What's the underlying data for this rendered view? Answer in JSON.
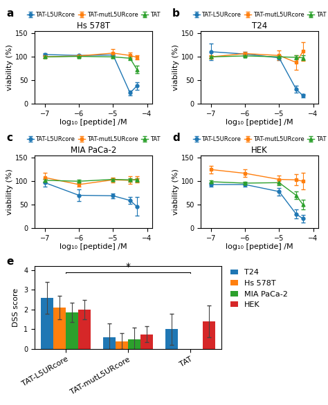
{
  "chart_data": [
    {
      "type": "line",
      "title": "Hs 578T",
      "annotations": [
        {
          "text": "a"
        }
      ],
      "x": [
        -7,
        -6,
        -5,
        -4.5,
        -4.3
      ],
      "xlim": [
        -7.3,
        -3.85
      ],
      "xticks": [
        {
          "value": -7,
          "label": "−7"
        },
        {
          "value": -6,
          "label": "−6"
        },
        {
          "value": -5,
          "label": "−5"
        },
        {
          "value": -4,
          "label": "−4"
        }
      ],
      "ylim": [
        0,
        155
      ],
      "yticks": [
        0,
        50,
        100,
        150
      ],
      "x_label": "log₁₀ [peptide] /M",
      "y_label": "viability (%)",
      "legend": "upper center",
      "series": [
        {
          "name": "TAT-L5URcore",
          "marker": "circle",
          "values": [
            105,
            103,
            104,
            23,
            38
          ],
          "errors": [
            3,
            2,
            3,
            5,
            8
          ]
        },
        {
          "name": "TAT-mutL5URcore",
          "marker": "square",
          "values": [
            100,
            102,
            108,
            103,
            99
          ],
          "errors": [
            3,
            2,
            8,
            6,
            5
          ]
        },
        {
          "name": "TAT",
          "marker": "triangle",
          "values": [
            100,
            101,
            100,
            97,
            73
          ],
          "errors": [
            2,
            2,
            3,
            4,
            8
          ]
        }
      ]
    },
    {
      "type": "line",
      "title": "T24",
      "annotations": [
        {
          "text": "b"
        }
      ],
      "x": [
        -7,
        -6,
        -5,
        -4.5,
        -4.3
      ],
      "xlim": [
        -7.3,
        -3.85
      ],
      "xticks": [
        {
          "value": -7,
          "label": "−7"
        },
        {
          "value": -6,
          "label": "−6"
        },
        {
          "value": -5,
          "label": "−5"
        },
        {
          "value": -4,
          "label": "−4"
        }
      ],
      "ylim": [
        0,
        155
      ],
      "yticks": [
        0,
        50,
        100,
        150
      ],
      "x_label": "log₁₀ [peptide] /M",
      "y_label": "viability (%)",
      "legend": "upper center",
      "series": [
        {
          "name": "TAT-L5URcore",
          "marker": "circle",
          "values": [
            111,
            106,
            98,
            31,
            17
          ],
          "errors": [
            18,
            4,
            5,
            8,
            4
          ]
        },
        {
          "name": "TAT-mutL5URcore",
          "marker": "square",
          "values": [
            100,
            107,
            103,
            88,
            112
          ],
          "errors": [
            4,
            3,
            10,
            15,
            20
          ]
        },
        {
          "name": "TAT",
          "marker": "triangle",
          "values": [
            100,
            102,
            100,
            99,
            98
          ],
          "errors": [
            2,
            2,
            3,
            4,
            5
          ]
        }
      ]
    },
    {
      "type": "line",
      "title": "MIA PaCa-2",
      "annotations": [
        {
          "text": "c"
        }
      ],
      "x": [
        -7,
        -6,
        -5,
        -4.5,
        -4.3
      ],
      "xlim": [
        -7.3,
        -3.85
      ],
      "xticks": [
        {
          "value": -7,
          "label": "−7"
        },
        {
          "value": -6,
          "label": "−6"
        },
        {
          "value": -5,
          "label": "−5"
        },
        {
          "value": -4,
          "label": "−4"
        }
      ],
      "ylim": [
        0,
        155
      ],
      "yticks": [
        0,
        50,
        100,
        150
      ],
      "x_label": "log₁₀ [peptide] /M",
      "y_label": "viability (%)",
      "legend": "upper center",
      "series": [
        {
          "name": "TAT-L5URcore",
          "marker": "circle",
          "values": [
            97,
            70,
            69,
            59,
            46
          ],
          "errors": [
            8,
            12,
            5,
            8,
            20
          ]
        },
        {
          "name": "TAT-mutL5URcore",
          "marker": "square",
          "values": [
            108,
            93,
            103,
            102,
            104
          ],
          "errors": [
            10,
            5,
            5,
            8,
            6
          ]
        },
        {
          "name": "TAT",
          "marker": "triangle",
          "values": [
            102,
            100,
            104,
            103,
            103
          ],
          "errors": [
            3,
            3,
            3,
            4,
            4
          ]
        }
      ]
    },
    {
      "type": "line",
      "title": "HEK",
      "annotations": [
        {
          "text": "d"
        }
      ],
      "x": [
        -7,
        -6,
        -5,
        -4.5,
        -4.3
      ],
      "xlim": [
        -7.3,
        -3.85
      ],
      "xticks": [
        {
          "value": -7,
          "label": "−7"
        },
        {
          "value": -6,
          "label": "−6"
        },
        {
          "value": -5,
          "label": "−5"
        },
        {
          "value": -4,
          "label": "−4"
        }
      ],
      "ylim": [
        0,
        155
      ],
      "yticks": [
        0,
        50,
        100,
        150
      ],
      "x_label": "log₁₀ [peptide] /M",
      "y_label": "viability (%)",
      "legend": "upper center",
      "series": [
        {
          "name": "TAT-L5URcore",
          "marker": "circle",
          "values": [
            93,
            93,
            78,
            30,
            20
          ],
          "errors": [
            5,
            5,
            8,
            10,
            8
          ]
        },
        {
          "name": "TAT-mutL5URcore",
          "marker": "square",
          "values": [
            125,
            117,
            104,
            103,
            100
          ],
          "errors": [
            8,
            8,
            8,
            12,
            18
          ]
        },
        {
          "name": "TAT",
          "marker": "triangle",
          "values": [
            99,
            96,
            97,
            70,
            50
          ],
          "errors": [
            3,
            3,
            5,
            8,
            10
          ]
        }
      ]
    },
    {
      "type": "bar",
      "categories": [
        "TAT-L5URcore",
        "TAT-mutL5URcore",
        "TAT"
      ],
      "ylim": [
        0,
        4.2
      ],
      "yticks": [
        0,
        1,
        2,
        3,
        4
      ],
      "y_label": "DSS score",
      "legend": "upper left",
      "annotations": [
        {
          "text": "e"
        },
        {
          "text": "*",
          "from": "TAT-L5URcore",
          "to": "TAT",
          "y": 3.85
        }
      ],
      "series": [
        {
          "name": "T24",
          "values": [
            2.6,
            0.6,
            1.0
          ],
          "errors": [
            0.8,
            0.7,
            0.8
          ]
        },
        {
          "name": "Hs 578T",
          "values": [
            2.1,
            0.4,
            null
          ],
          "errors": [
            0.6,
            0.4,
            null
          ]
        },
        {
          "name": "MIA PaCa-2",
          "values": [
            1.85,
            0.5,
            null
          ],
          "errors": [
            0.5,
            0.6,
            null
          ]
        },
        {
          "name": "HEK",
          "values": [
            2.0,
            0.75,
            1.4
          ],
          "errors": [
            0.5,
            0.4,
            0.8
          ]
        }
      ]
    }
  ]
}
